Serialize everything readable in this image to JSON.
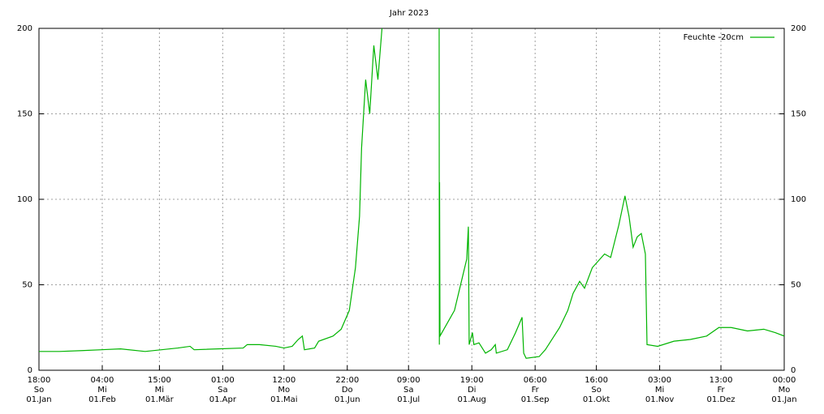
{
  "chart_data": {
    "type": "line",
    "title": "Jahr 2023",
    "xlim": [
      0,
      365
    ],
    "xticks": [
      {
        "value": 0,
        "label": [
          "18:00",
          "So",
          "01.Jan"
        ]
      },
      {
        "value": 31,
        "label": [
          "04:00",
          "Mi",
          "01.Feb"
        ]
      },
      {
        "value": 59,
        "label": [
          "15:00",
          "Mi",
          "01.Mär"
        ]
      },
      {
        "value": 90,
        "label": [
          "01:00",
          "Sa",
          "01.Apr"
        ]
      },
      {
        "value": 120,
        "label": [
          "12:00",
          "Mo",
          "01.Mai"
        ]
      },
      {
        "value": 151,
        "label": [
          "22:00",
          "Do",
          "01.Jun"
        ]
      },
      {
        "value": 181,
        "label": [
          "09:00",
          "Sa",
          "01.Jul"
        ]
      },
      {
        "value": 212,
        "label": [
          "19:00",
          "Di",
          "01.Aug"
        ]
      },
      {
        "value": 243,
        "label": [
          "06:00",
          "Fr",
          "01.Sep"
        ]
      },
      {
        "value": 273,
        "label": [
          "16:00",
          "So",
          "01.Okt"
        ]
      },
      {
        "value": 304,
        "label": [
          "03:00",
          "Mi",
          "01.Nov"
        ]
      },
      {
        "value": 334,
        "label": [
          "13:00",
          "Fr",
          "01.Dez"
        ]
      },
      {
        "value": 365,
        "label": [
          "00:00",
          "Mo",
          "01.Jan"
        ]
      }
    ],
    "ylim": [
      0,
      200
    ],
    "yticks": [
      0,
      50,
      100,
      150,
      200
    ],
    "y2lim": [
      0,
      200
    ],
    "y2ticks": [
      0,
      50,
      100,
      150,
      200
    ],
    "grid": true,
    "legend": "top-right",
    "x": [
      0,
      10,
      21,
      40,
      52,
      68,
      74,
      76,
      100,
      102,
      108,
      116,
      120,
      124,
      127,
      129,
      130,
      135,
      137,
      144,
      148,
      152,
      155,
      157,
      158,
      160,
      162,
      164,
      166,
      168,
      180,
      196,
      196.1,
      196.2,
      196.4,
      203.5,
      207.5,
      209.5,
      210.3,
      210.7,
      212.3,
      213,
      215.5,
      218.7,
      221.5,
      223.5,
      224,
      229.4,
      233.4,
      236.6,
      237.4,
      238.6,
      245,
      248,
      255,
      259,
      261.6,
      264.8,
      267.2,
      271,
      277,
      280,
      284,
      287,
      289,
      291,
      293,
      295,
      297,
      297.8,
      303,
      311,
      319,
      327,
      333,
      339,
      347,
      355,
      360.6,
      365
    ],
    "series": [
      {
        "name": "Feuchte -20cm",
        "color": "#00b400",
        "values": [
          11,
          11,
          11.5,
          12.5,
          11,
          13,
          14,
          12,
          13,
          15,
          15,
          14,
          13,
          14,
          18,
          20,
          12,
          13,
          17,
          20,
          24,
          35,
          60,
          90,
          130,
          170,
          150,
          190,
          170,
          200,
          null,
          200,
          15,
          110,
          20,
          35,
          55,
          65,
          84,
          15,
          22,
          15,
          16,
          10,
          12,
          15,
          10,
          12,
          22,
          31,
          10,
          7,
          8,
          12,
          25,
          35,
          45,
          52,
          48,
          60,
          68,
          66,
          85,
          102,
          90,
          72,
          78,
          80,
          68,
          15,
          14,
          17,
          18,
          20,
          25,
          25,
          23,
          24,
          22,
          20
        ]
      }
    ]
  }
}
